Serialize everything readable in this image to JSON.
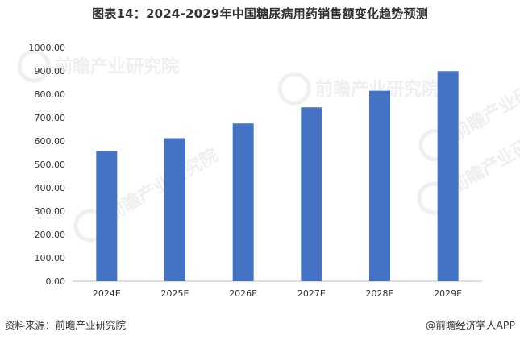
{
  "title": "图表14：2024-2029年中国糖尿病用药销售额变化趋势预测",
  "watermark": "前瞻产业研究院",
  "footer": {
    "source": "资料来源：前瞻产业研究院",
    "credit": "@前瞻经济学人APP"
  },
  "colors": {
    "bar": "#4472C4",
    "axis": "#bfbfbf",
    "text": "#333333"
  },
  "chart_data": {
    "type": "bar",
    "categories": [
      "2024E",
      "2025E",
      "2026E",
      "2027E",
      "2028E",
      "2029E"
    ],
    "values": [
      557,
      612,
      675,
      744,
      815,
      899
    ],
    "ylim": [
      0,
      1000
    ],
    "yticks": [
      "0.00",
      "100.00",
      "200.00",
      "300.00",
      "400.00",
      "500.00",
      "600.00",
      "700.00",
      "800.00",
      "900.00",
      "1000.00"
    ],
    "grid": false,
    "legend": "none"
  }
}
